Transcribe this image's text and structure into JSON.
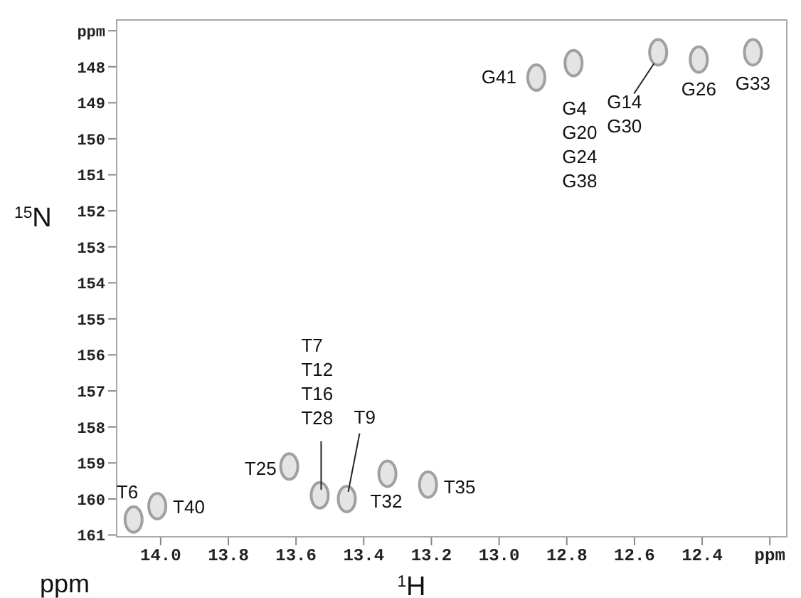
{
  "chart_data": {
    "type": "scatter",
    "xlabel": "$^{1}$H",
    "ylabel": "$^{15}$N",
    "x": [
      12.89,
      12.78,
      12.53,
      12.41,
      12.25,
      14.08,
      14.01,
      13.62,
      13.53,
      13.45,
      13.33,
      13.21
    ],
    "series": [
      {
        "color": "#a0a0a0",
        "values": [
          148.3,
          147.9,
          147.6,
          147.8,
          147.6,
          160.57,
          160.2,
          159.1,
          159.9,
          160.0,
          159.3,
          159.6
        ]
      }
    ],
    "marker": "circle",
    "grid": false,
    "xlim": [
      14.13,
      12.15
    ],
    "xticks": [
      {
        "value": 14.0,
        "label": "14.0"
      },
      {
        "value": 13.8,
        "label": "13.8"
      },
      {
        "value": 13.6,
        "label": "13.6"
      },
      {
        "value": 13.4,
        "label": "13.4"
      },
      {
        "value": 13.2,
        "label": "13.2"
      },
      {
        "value": 13.0,
        "label": "13.0"
      },
      {
        "value": 12.8,
        "label": "12.8"
      },
      {
        "value": 12.6,
        "label": "12.6"
      },
      {
        "value": 12.4,
        "label": "12.4"
      },
      {
        "value": 12.2,
        "label": "ppm"
      }
    ],
    "ylim": [
      161.05,
      146.7
    ],
    "yticks": [
      {
        "value": 147,
        "label": "ppm"
      },
      148,
      149,
      150,
      151,
      152,
      153,
      154,
      155,
      156,
      157,
      158,
      159,
      160,
      161
    ],
    "annotations": [
      {
        "text": "G41",
        "x": 12.89,
        "y": 148.3
      },
      {
        "text": "G4\nG20\nG24\nG38",
        "x": 12.78,
        "y": 147.9
      },
      {
        "text": "G14\nG30",
        "x": 12.53,
        "y": 147.6
      },
      {
        "text": "G26",
        "x": 12.41,
        "y": 147.8
      },
      {
        "text": "G33",
        "x": 12.25,
        "y": 147.6
      },
      {
        "text": "T6",
        "x": 14.08,
        "y": 160.57
      },
      {
        "text": "T40",
        "x": 14.01,
        "y": 160.2
      },
      {
        "text": "T25",
        "x": 13.62,
        "y": 159.1
      },
      {
        "text": "T7\nT12\nT16\nT28",
        "x": 13.53,
        "y": 159.9
      },
      {
        "text": "T9",
        "x": 13.45,
        "y": 160.0
      },
      {
        "text": "T32",
        "x": 13.33,
        "y": 159.3
      },
      {
        "text": "T35",
        "x": 13.21,
        "y": 159.6
      },
      "ppm"
    ]
  }
}
